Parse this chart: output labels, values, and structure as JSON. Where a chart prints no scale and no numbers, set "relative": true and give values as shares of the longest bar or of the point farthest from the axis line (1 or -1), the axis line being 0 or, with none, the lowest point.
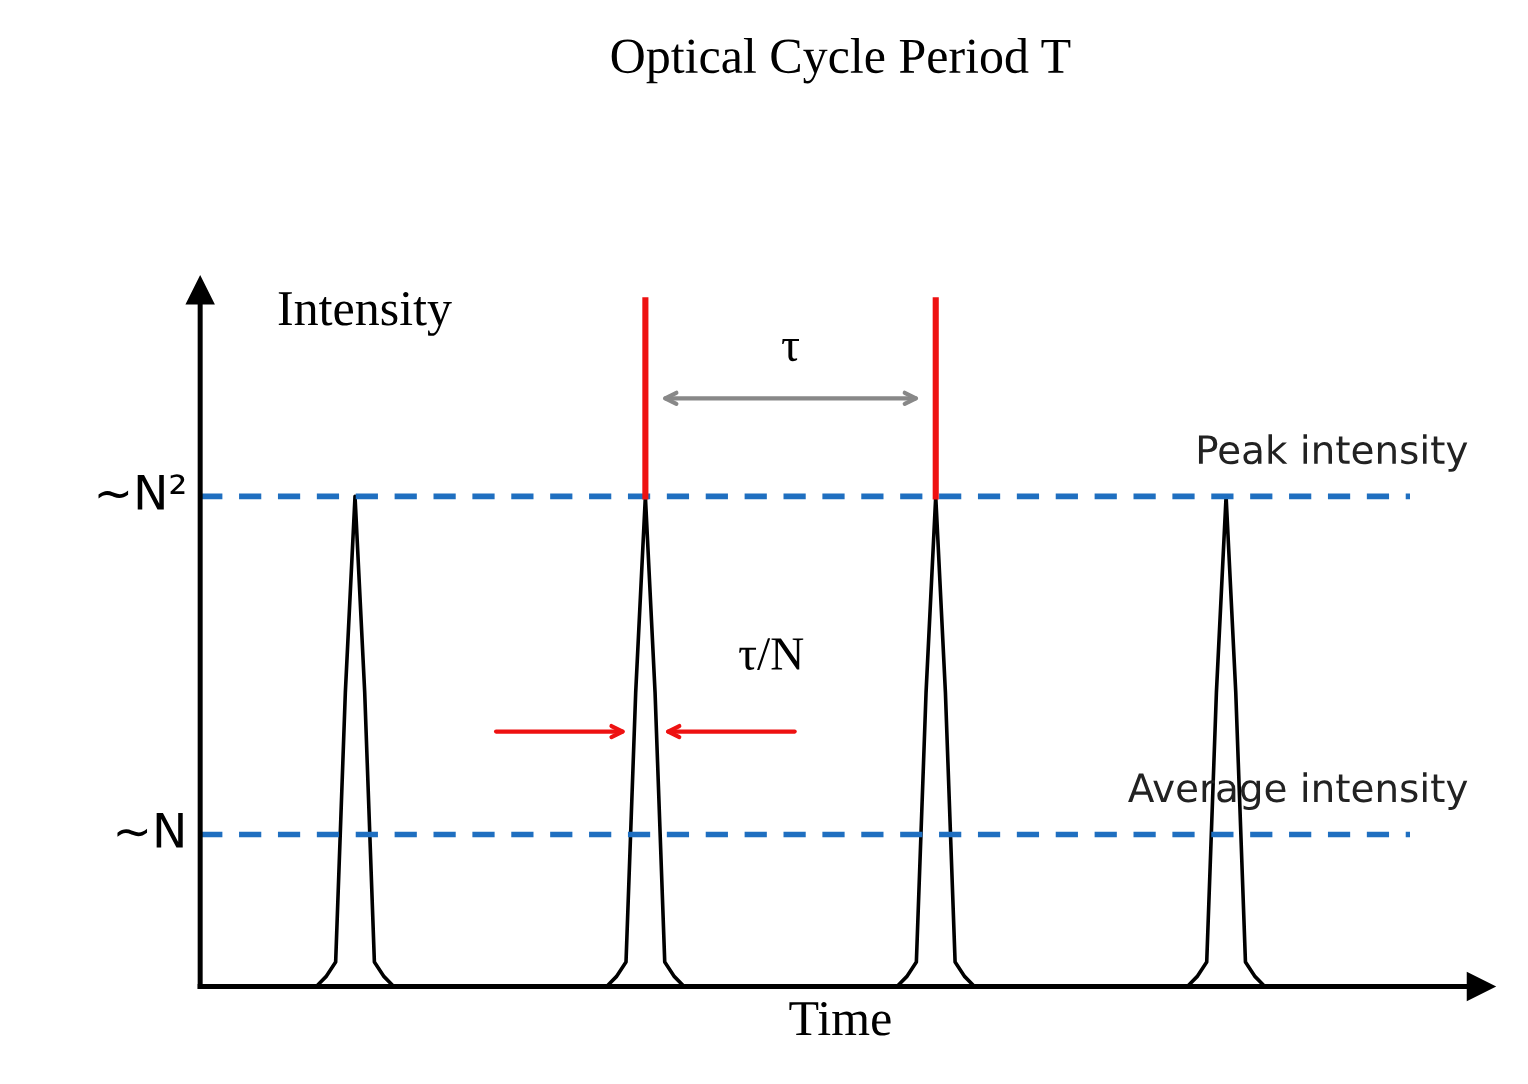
{
  "chart_data": {
    "type": "line",
    "relative": true,
    "title": "Optical Cycle Period T",
    "xlabel": "Time",
    "ylabel": "Intensity",
    "categories": [
      null,
      null,
      null,
      null,
      null,
      null,
      null,
      null,
      null,
      null,
      null,
      null,
      null,
      null,
      null,
      null,
      null,
      null,
      null,
      null,
      null,
      null,
      null,
      null,
      null,
      null,
      null,
      null,
      null,
      null,
      null,
      null,
      null,
      null,
      null,
      null,
      null,
      null,
      null,
      null,
      null,
      null,
      null,
      null,
      null,
      null,
      null,
      null,
      null,
      null,
      null,
      null,
      null,
      null,
      null,
      null,
      null,
      null,
      null,
      null,
      null,
      null,
      null,
      null,
      null,
      null,
      null,
      null,
      null,
      null,
      null,
      null,
      null,
      null,
      null,
      null,
      null,
      null,
      null,
      null,
      null,
      null,
      null,
      null,
      null,
      null,
      null,
      null,
      null,
      null,
      null,
      null,
      null,
      null,
      null,
      null,
      null,
      null,
      null,
      null,
      null,
      null,
      null,
      null,
      null,
      null,
      null,
      null,
      null,
      null,
      null,
      null,
      null,
      null,
      null,
      null,
      null,
      null,
      null,
      null,
      null,
      null,
      null,
      null,
      null,
      null
    ],
    "series": [
      {
        "color": "#000000",
        "values": [
          0,
          0,
          0,
          0,
          0,
          0,
          0,
          0,
          0,
          0,
          0,
          0,
          0,
          0.02,
          0.05,
          0.6,
          1,
          0.6,
          0.05,
          0.02,
          0,
          0,
          0,
          0,
          0,
          0,
          0,
          0,
          0,
          0,
          0,
          0,
          0,
          0,
          0,
          0,
          0,
          0,
          0,
          0,
          0,
          0,
          0,
          0.02,
          0.05,
          0.6,
          1,
          0.6,
          0.05,
          0.02,
          0,
          0,
          0,
          0,
          0,
          0,
          0,
          0,
          0,
          0,
          0,
          0,
          0,
          0,
          0,
          0,
          0,
          0,
          0,
          0,
          0,
          0,
          0,
          0.02,
          0.05,
          0.6,
          1,
          0.6,
          0.05,
          0.02,
          0,
          0,
          0,
          0,
          0,
          0,
          0,
          0,
          0,
          0,
          0,
          0,
          0,
          0,
          0,
          0,
          0,
          0,
          0,
          0,
          0,
          0,
          0,
          0.02,
          0.05,
          0.6,
          1,
          0.6,
          0.05,
          0.02,
          0,
          0,
          0,
          0,
          0,
          0,
          0,
          0,
          0,
          0,
          0,
          0,
          0,
          0,
          0,
          0
        ]
      }
    ],
    "ref_lines": [
      {
        "axis": "y",
        "value": 1,
        "label": "Peak intensity",
        "color": "#1f6fc0",
        "line_style": "dashed"
      },
      {
        "axis": "y",
        "value": 0.31,
        "label": "Average intensity",
        "color": "#1f6fc0",
        "line_style": "dashed"
      }
    ],
    "annotations": [
      "~N²",
      "~N",
      "τ",
      "τ/N"
    ],
    "marker": "none",
    "line_style": "solid"
  }
}
